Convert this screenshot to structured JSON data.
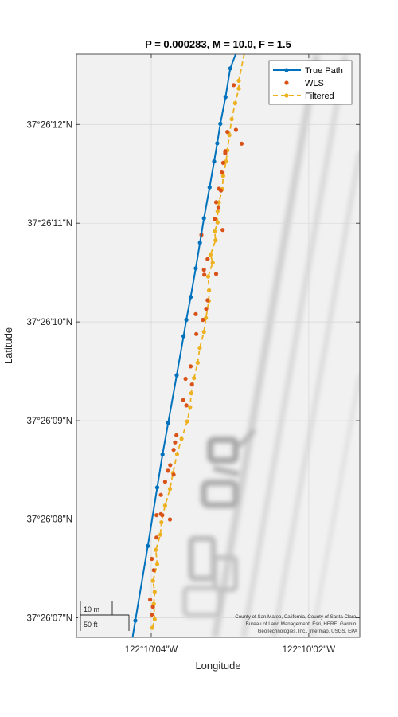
{
  "chart_data": {
    "type": "scatter",
    "title": "P = 0.000283, M = 10.0, F = 1.5",
    "xlabel": "Longitude",
    "ylabel": "Latitude",
    "x_ticks": [
      {
        "lon": -122.168889,
        "label": "122°10'04\"W"
      },
      {
        "lon": -122.168333,
        "label": "122°10'02\"W"
      }
    ],
    "y_ticks": [
      {
        "lat": 37.435278,
        "label": "37°26'07\"N"
      },
      {
        "lat": 37.435556,
        "label": "37°26'08\"N"
      },
      {
        "lat": 37.435833,
        "label": "37°26'09\"N"
      },
      {
        "lat": 37.436111,
        "label": "37°26'10\"N"
      },
      {
        "lat": 37.436389,
        "label": "37°26'11\"N"
      },
      {
        "lat": 37.436667,
        "label": "37°26'12\"N"
      }
    ],
    "xlim": [
      -122.169153,
      -122.168153
    ],
    "ylim": [
      37.435223,
      37.436865
    ],
    "grid": true,
    "legend_position": "top-right",
    "series": [
      {
        "name": "True Path",
        "style": "line-with-dots",
        "color": "#0072BD",
        "points": [
          [
            -122.16897,
            37.43515
          ],
          [
            -122.168945,
            37.43527
          ],
          [
            -122.168901,
            37.43548
          ],
          [
            -122.168868,
            37.435645
          ],
          [
            -122.168849,
            37.435738
          ],
          [
            -122.168829,
            37.435827
          ],
          [
            -122.168799,
            37.435961
          ],
          [
            -122.168775,
            37.436071
          ],
          [
            -122.168765,
            37.436117
          ],
          [
            -122.16875,
            37.436181
          ],
          [
            -122.168732,
            37.436262
          ],
          [
            -122.168717,
            37.436334
          ],
          [
            -122.168703,
            37.436403
          ],
          [
            -122.168683,
            37.43649
          ],
          [
            -122.168667,
            37.436563
          ],
          [
            -122.168656,
            37.436614
          ],
          [
            -122.168645,
            37.436669
          ],
          [
            -122.168627,
            37.436744
          ],
          [
            -122.16861,
            37.436825
          ],
          [
            -122.16856,
            37.43693
          ]
        ]
      },
      {
        "name": "WLS",
        "style": "dots",
        "color": "#D95319",
        "points": [
          [
            -122.168883,
            37.435309
          ],
          [
            -122.168887,
            37.435287
          ],
          [
            -122.168893,
            37.435329
          ],
          [
            -122.16888,
            37.435412
          ],
          [
            -122.168887,
            37.435444
          ],
          [
            -122.16887,
            37.435504
          ],
          [
            -122.16887,
            37.435567
          ],
          [
            -122.16885,
            37.435567
          ],
          [
            -122.168855,
            37.435624
          ],
          [
            -122.16884,
            37.435661
          ],
          [
            -122.16883,
            37.435692
          ],
          [
            -122.168822,
            37.435708
          ],
          [
            -122.16881,
            37.435751
          ],
          [
            -122.168805,
            37.435772
          ],
          [
            -122.1688,
            37.435792
          ],
          [
            -122.168776,
            37.435891
          ],
          [
            -122.168768,
            37.435951
          ],
          [
            -122.16875,
            37.435986
          ],
          [
            -122.16873,
            37.436077
          ],
          [
            -122.168707,
            37.436117
          ],
          [
            -122.16869,
            37.436172
          ],
          [
            -122.168703,
            37.436258
          ],
          [
            -122.16869,
            37.436288
          ],
          [
            -122.168665,
            37.436401
          ],
          [
            -122.168652,
            37.436434
          ],
          [
            -122.168643,
            37.436481
          ],
          [
            -122.16864,
            37.436532
          ],
          [
            -122.168635,
            37.436559
          ],
          [
            -122.168628,
            37.436586
          ],
          [
            -122.16862,
            37.436646
          ],
          [
            -122.16859,
            37.436652
          ],
          [
            -122.16857,
            37.436613
          ],
          [
            -122.168637,
            37.43637
          ],
          [
            -122.168712,
            37.436356
          ],
          [
            -122.16866,
            37.436246
          ],
          [
            -122.168732,
            37.436133
          ],
          [
            -122.168823,
            37.435555
          ],
          [
            -122.168855,
            37.43557
          ],
          [
            -122.168765,
            37.435876
          ],
          [
            -122.16881,
            37.435681
          ],
          [
            -122.16865,
            37.436486
          ],
          [
            -122.16866,
            37.436448
          ],
          [
            -122.168598,
            37.436778
          ],
          [
            -122.168628,
            37.436592
          ],
          [
            -122.168702,
            37.436244
          ],
          [
            -122.168695,
            37.436148
          ],
          [
            -122.168745,
            37.435935
          ]
        ]
      },
      {
        "name": "Filtered",
        "style": "dashed-with-dots",
        "color": "#EDB120",
        "points": [
          [
            -122.168885,
            37.43525
          ],
          [
            -122.168877,
            37.435274
          ],
          [
            -122.16888,
            37.435317
          ],
          [
            -122.168877,
            37.435351
          ],
          [
            -122.168883,
            37.435382
          ],
          [
            -122.168868,
            37.435429
          ],
          [
            -122.168873,
            37.435469
          ],
          [
            -122.168857,
            37.435512
          ],
          [
            -122.168853,
            37.435547
          ],
          [
            -122.16884,
            37.435594
          ],
          [
            -122.168823,
            37.435641
          ],
          [
            -122.168812,
            37.435686
          ],
          [
            -122.168798,
            37.435739
          ],
          [
            -122.168782,
            37.435782
          ],
          [
            -122.168762,
            37.435831
          ],
          [
            -122.168752,
            37.435871
          ],
          [
            -122.168748,
            37.43591
          ],
          [
            -122.168738,
            37.435953
          ],
          [
            -122.168725,
            37.435996
          ],
          [
            -122.168718,
            37.436038
          ],
          [
            -122.168703,
            37.436083
          ],
          [
            -122.168696,
            37.436122
          ],
          [
            -122.168686,
            37.43617
          ],
          [
            -122.168685,
            37.4362
          ],
          [
            -122.168688,
            37.436239
          ],
          [
            -122.168672,
            37.436278
          ],
          [
            -122.16868,
            37.4363
          ],
          [
            -122.168662,
            37.436341
          ],
          [
            -122.168665,
            37.436366
          ],
          [
            -122.168655,
            37.436391
          ],
          [
            -122.168655,
            37.436423
          ],
          [
            -122.16865,
            37.436448
          ],
          [
            -122.168638,
            37.436485
          ],
          [
            -122.168635,
            37.436522
          ],
          [
            -122.168625,
            37.436563
          ],
          [
            -122.16862,
            37.436594
          ],
          [
            -122.168613,
            37.436637
          ],
          [
            -122.168605,
            37.436682
          ],
          [
            -122.168593,
            37.436727
          ],
          [
            -122.16858,
            37.436768
          ],
          [
            -122.16858,
            37.43679
          ],
          [
            -122.16856,
            37.43687
          ]
        ]
      }
    ],
    "scalebar": {
      "top_label": "10 m",
      "bottom_label": "50 ft"
    },
    "attribution": [
      "County of San Mateo, California, County of Santa Clara,",
      "Bureau of Land Management, Esri, HERE, Garmin,",
      "GeoTechnologies, Inc., Intermap, USGS, EPA"
    ],
    "colors": {
      "axes_background": "#f1f1f1",
      "grid": "#d6d6d6",
      "road_marking": "#c4c4c4"
    }
  }
}
